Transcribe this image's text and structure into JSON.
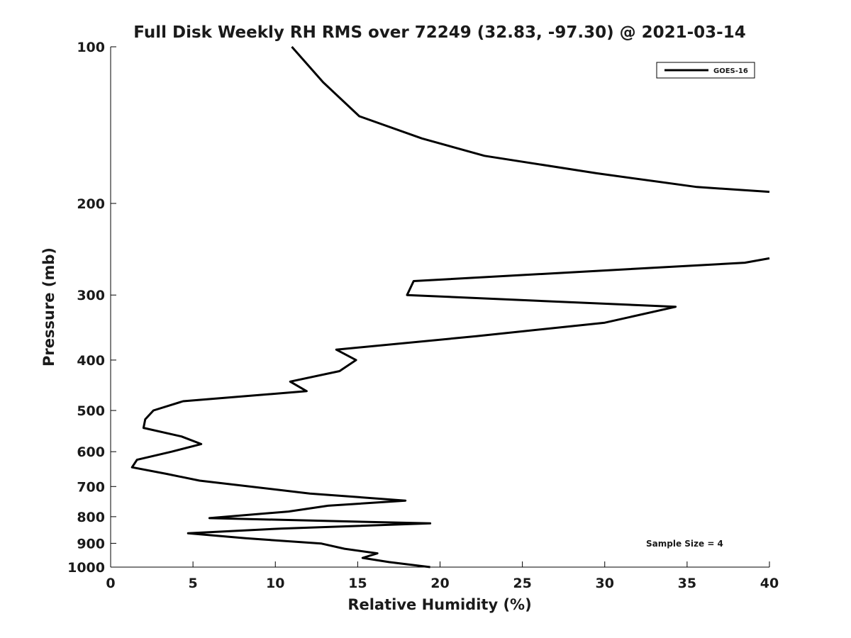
{
  "chart_data": {
    "type": "line",
    "title": "Full Disk Weekly RH RMS over 72249 (32.83, -97.30) @ 2021-03-14",
    "xlabel": "Relative Humidity (%)",
    "ylabel": "Pressure (mb)",
    "xlim": [
      0,
      40
    ],
    "ylim": [
      100,
      1000
    ],
    "yscale": "log",
    "y_reversed": true,
    "grid": false,
    "legend_position": "top-right",
    "x_ticks": [
      "0",
      "5",
      "10",
      "15",
      "20",
      "25",
      "30",
      "35",
      "40"
    ],
    "y_ticks": [
      "100",
      "200",
      "300",
      "400",
      "500",
      "600",
      "700",
      "800",
      "900",
      "1000"
    ],
    "annotation": "Sample Size = 4",
    "series": [
      {
        "name": "GOES-16",
        "color": "#000000",
        "segments": [
          [
            {
              "x": 11.0,
              "y": 100
            },
            {
              "x": 12.9,
              "y": 117
            },
            {
              "x": 15.1,
              "y": 136
            },
            {
              "x": 18.9,
              "y": 150
            },
            {
              "x": 22.7,
              "y": 162
            },
            {
              "x": 29.5,
              "y": 175
            },
            {
              "x": 35.6,
              "y": 186
            },
            {
              "x": 40.0,
              "y": 190
            }
          ],
          [
            {
              "x": 40.0,
              "y": 255
            },
            {
              "x": 38.5,
              "y": 260
            },
            {
              "x": 18.4,
              "y": 282
            },
            {
              "x": 18.0,
              "y": 300
            },
            {
              "x": 34.3,
              "y": 316
            },
            {
              "x": 30.0,
              "y": 339
            },
            {
              "x": 22.2,
              "y": 360
            },
            {
              "x": 13.7,
              "y": 382
            },
            {
              "x": 14.9,
              "y": 400
            },
            {
              "x": 13.9,
              "y": 420
            },
            {
              "x": 10.9,
              "y": 440
            },
            {
              "x": 11.9,
              "y": 459
            },
            {
              "x": 4.4,
              "y": 480
            },
            {
              "x": 2.6,
              "y": 500
            },
            {
              "x": 2.1,
              "y": 520
            },
            {
              "x": 2.0,
              "y": 540
            },
            {
              "x": 4.3,
              "y": 561
            },
            {
              "x": 5.5,
              "y": 580
            },
            {
              "x": 3.7,
              "y": 600
            },
            {
              "x": 1.6,
              "y": 622
            },
            {
              "x": 1.3,
              "y": 643
            },
            {
              "x": 3.4,
              "y": 662
            },
            {
              "x": 5.4,
              "y": 682
            },
            {
              "x": 12.1,
              "y": 722
            },
            {
              "x": 17.9,
              "y": 745
            },
            {
              "x": 13.2,
              "y": 762
            },
            {
              "x": 10.8,
              "y": 782
            },
            {
              "x": 6.0,
              "y": 805
            },
            {
              "x": 19.4,
              "y": 824
            },
            {
              "x": 10.4,
              "y": 843
            },
            {
              "x": 4.7,
              "y": 861
            },
            {
              "x": 8.2,
              "y": 880
            },
            {
              "x": 12.8,
              "y": 901
            },
            {
              "x": 14.2,
              "y": 922
            },
            {
              "x": 16.2,
              "y": 941
            },
            {
              "x": 15.3,
              "y": 960
            },
            {
              "x": 16.9,
              "y": 978
            },
            {
              "x": 19.4,
              "y": 1000
            }
          ]
        ]
      }
    ]
  }
}
